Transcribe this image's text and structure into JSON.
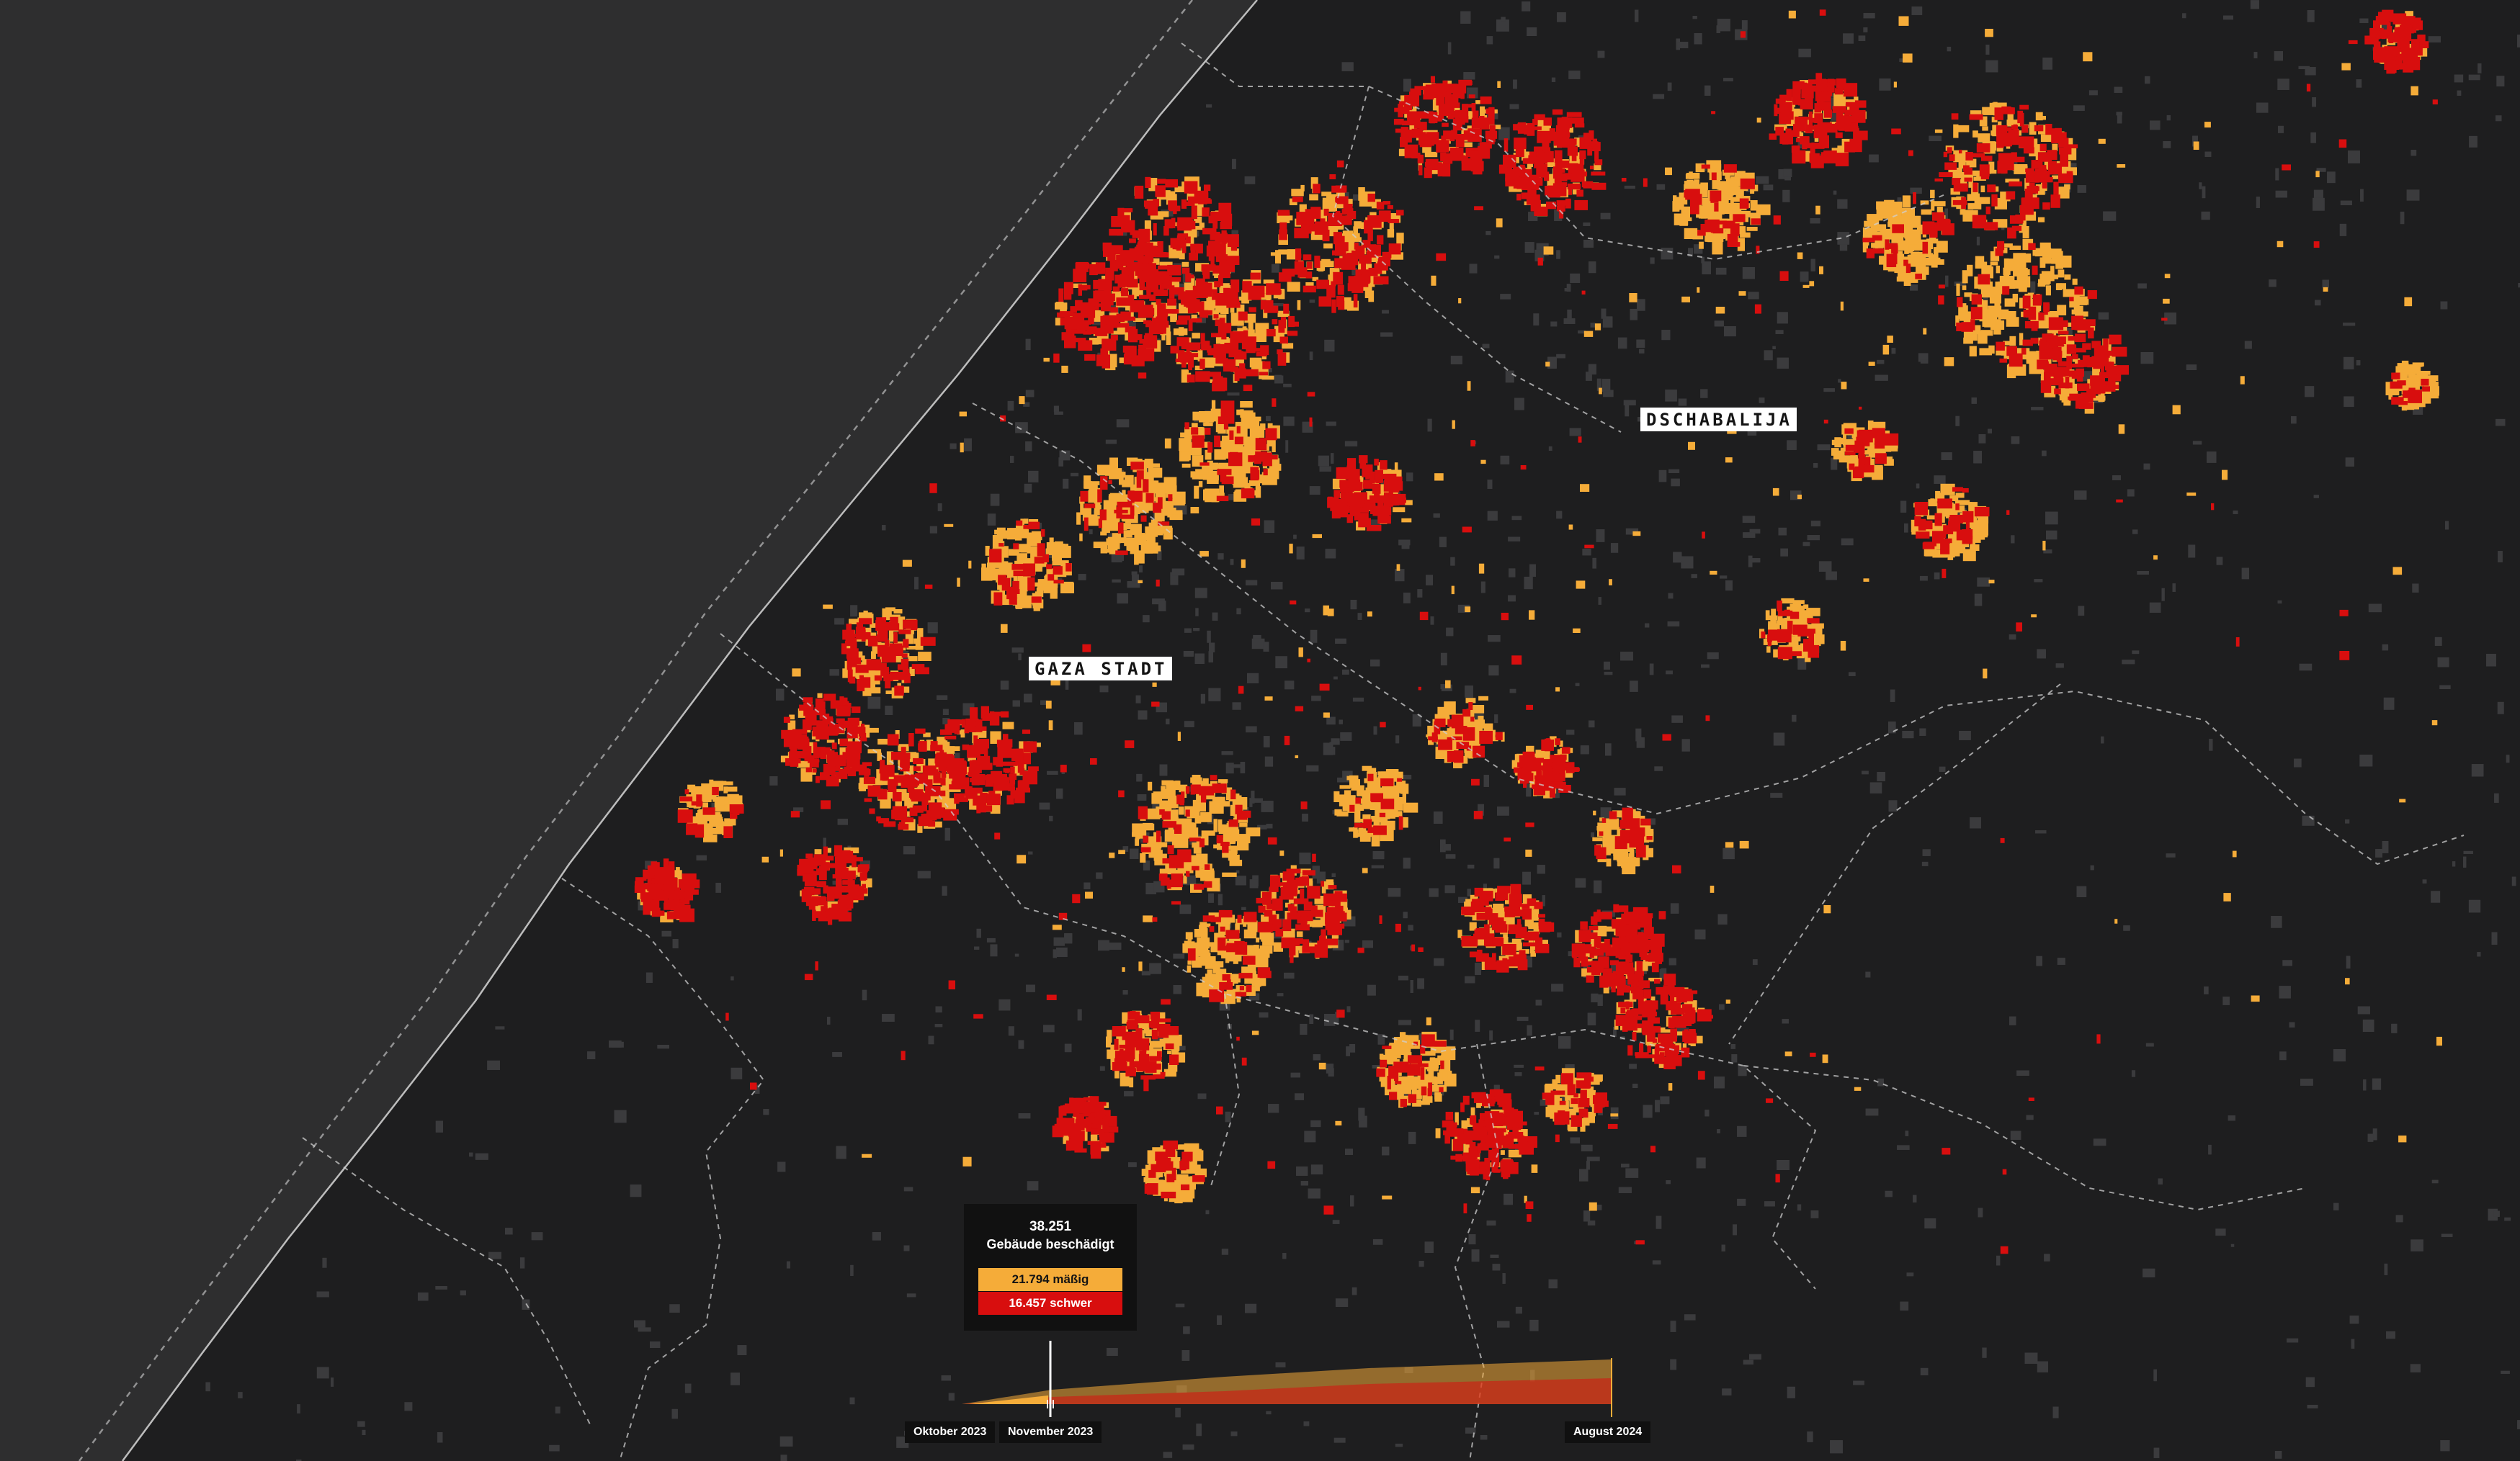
{
  "map": {
    "places": {
      "gaza_city": "GAZA STADT",
      "jabalia": "DSCHABALIJA"
    },
    "legend_tooltip": {
      "total": "38.251",
      "caption": "Gebäude beschädigt",
      "moderate": "21.794 mäßig",
      "severe": "16.457 schwer"
    },
    "timeline": {
      "start_label": "Oktober 2023",
      "current_label": "November 2023",
      "end_label": "August 2024"
    },
    "colors": {
      "sea": "#2e2e2f",
      "land": "#1e1e1f",
      "buildings": "#3b3b3d",
      "moderate": "#f5ac39",
      "severe": "#d80e0e",
      "boundary": "#bdbdbd"
    }
  }
}
